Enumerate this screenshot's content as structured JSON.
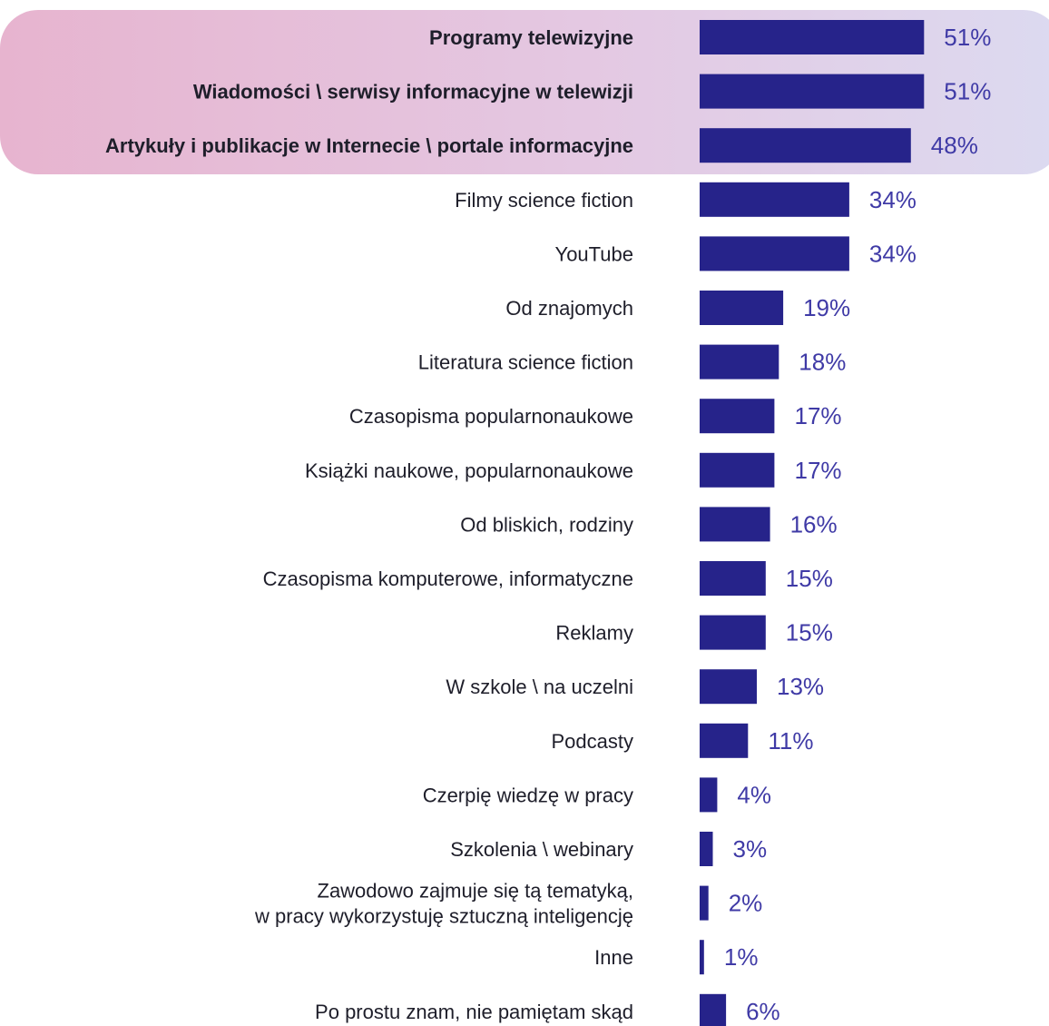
{
  "chart_data": {
    "type": "bar",
    "orientation": "horizontal",
    "categories": [
      "Programy telewizyjne",
      "Wiadomości \\ serwisy informacyjne w telewizji",
      "Artykuły i publikacje w Internecie \\ portale informacyjne",
      "Filmy science fiction",
      "YouTube",
      "Od znajomych",
      "Literatura science fiction",
      "Czasopisma popularnonaukowe",
      "Książki naukowe, popularnonaukowe",
      "Od bliskich, rodziny",
      "Czasopisma komputerowe, informatyczne",
      "Reklamy",
      "W szkole \\ na uczelni",
      "Podcasty",
      "Czerpię wiedzę w pracy",
      "Szkolenia \\ webinary",
      "Zawodowo zajmuje się tą tematyką,\nw pracy wykorzystuję sztuczną inteligencję",
      "Inne",
      "Po prostu znam, nie pamiętam skąd"
    ],
    "values": [
      51,
      51,
      48,
      34,
      34,
      19,
      18,
      17,
      17,
      16,
      15,
      15,
      13,
      11,
      4,
      3,
      2,
      1,
      6
    ],
    "value_labels": [
      "51%",
      "51%",
      "48%",
      "34%",
      "34%",
      "19%",
      "18%",
      "17%",
      "17%",
      "16%",
      "15%",
      "15%",
      "13%",
      "11%",
      "4%",
      "3%",
      "2%",
      "1%",
      "6%"
    ],
    "highlighted_count": 3,
    "unit": "%",
    "colors": {
      "bar": "#26238a",
      "value_text": "#3f3aa6",
      "label_text": "#1e1e2a",
      "highlight_start": "#e7b4cf",
      "highlight_end": "#dcdaf0"
    }
  }
}
